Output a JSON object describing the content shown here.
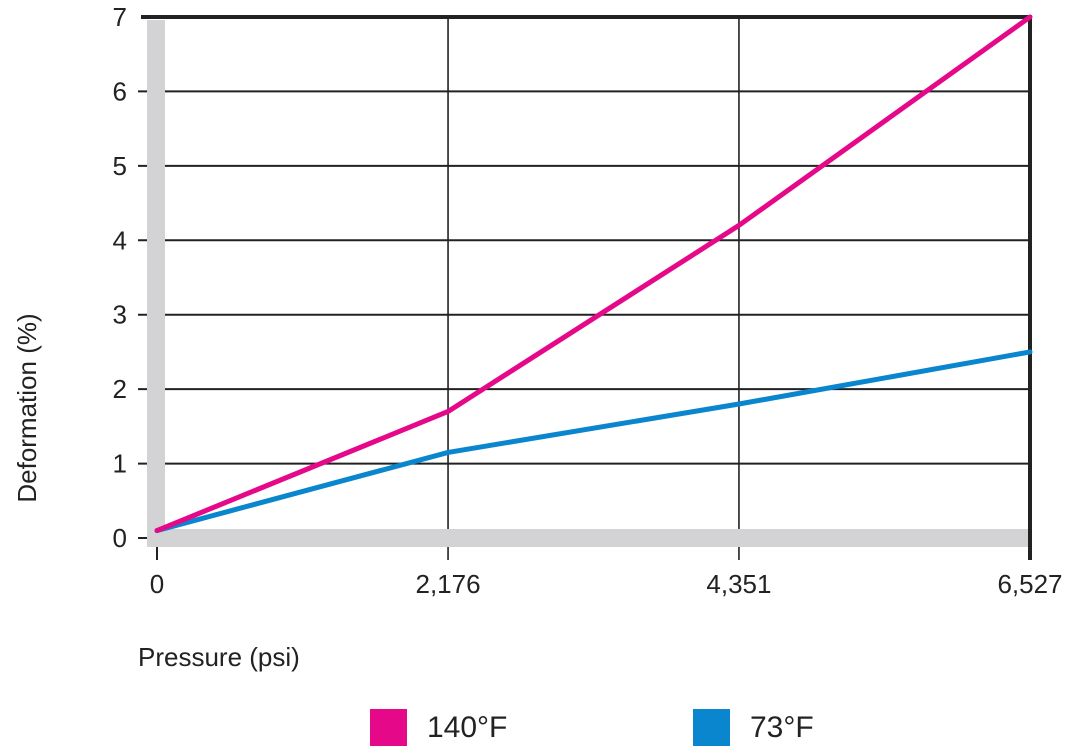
{
  "chart_data": {
    "type": "line",
    "title": "",
    "xlabel": "Pressure (psi)",
    "ylabel": "Deformation (%)",
    "x": [
      0,
      2176,
      4351,
      6527
    ],
    "x_tick_labels": [
      "0",
      "2,176",
      "4,351",
      "6,527"
    ],
    "y_ticks": [
      0,
      1,
      2,
      3,
      4,
      5,
      6,
      7
    ],
    "xlim": [
      0,
      6527
    ],
    "ylim": [
      0,
      7
    ],
    "grid": true,
    "legend_position": "bottom",
    "series": [
      {
        "name": "140°F",
        "color": "#E5098A",
        "values": [
          0.1,
          1.7,
          4.2,
          7.0
        ]
      },
      {
        "name": "73°F",
        "color": "#0A86CF",
        "values": [
          0.1,
          1.15,
          1.8,
          2.5
        ]
      }
    ]
  },
  "legend": {
    "items": [
      {
        "label": "140°F",
        "color": "#E5098A"
      },
      {
        "label": "73°F",
        "color": "#0A86CF"
      }
    ]
  },
  "colors": {
    "grid": "#222222",
    "axis_band": "#D3D3D5",
    "frame": "#222222"
  }
}
